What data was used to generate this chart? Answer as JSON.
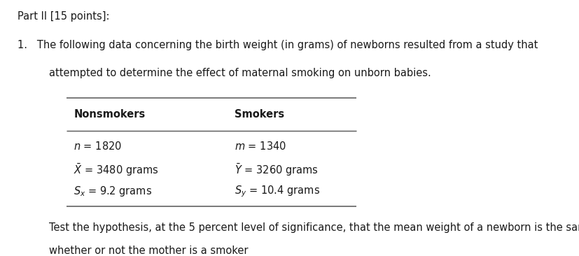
{
  "background_color": "#ffffff",
  "title_text": "Part II [15 points]:",
  "title_fontsize": 10.5,
  "item1_text": "1.   The following data concerning the birth weight (in grams) of newborns resulted from a study that",
  "item1b_text": "attempted to determine the effect of maternal smoking on unborn babies.",
  "col1_header": "Nonsmokers",
  "col2_header": "Smokers",
  "footnote_text1": "Test the hypothesis, at the 5 percent level of significance, that the mean weight of a newborn is the same",
  "footnote_text2": "whether or not the mother is a smoker",
  "data_fontsize": 10.5,
  "header_fontsize": 10.5
}
